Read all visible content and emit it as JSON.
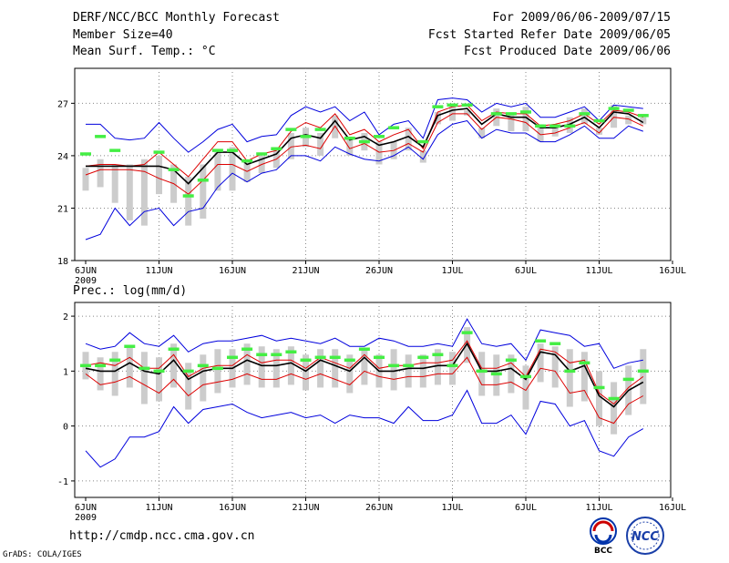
{
  "header": {
    "title": "DERF/NCC/BCC Monthly Forecast",
    "member_size": "Member Size=40",
    "variable": "Mean Surf. Temp.: °C",
    "period": "For 2009/06/06-2009/07/15",
    "started": "Fcst Started Refer Date 2009/06/05",
    "produced": "Fcst Produced Date 2009/06/06"
  },
  "footer": {
    "url": "http://cmdp.ncc.cma.gov.cn",
    "grads": "GrADS: COLA/IGES",
    "logo_bcc": "BCC",
    "logo_ncc": "NCC"
  },
  "colors": {
    "max_min": "#0000dd",
    "spread": "#dd0000",
    "mean": "#000000",
    "box": "#cccccc",
    "ref": "#44ee44",
    "grid": "#888888"
  },
  "chart_data": [
    {
      "type": "line",
      "title": "Mean Surf. Temp.: °C",
      "x_tick_labels": [
        "6JUN",
        "11JUN",
        "16JUN",
        "21JUN",
        "26JUN",
        "1JUL",
        "6JUL",
        "11JUL",
        "16JUL"
      ],
      "x_year_label": "2009",
      "x_tick_days": [
        0,
        5,
        10,
        15,
        20,
        25,
        30,
        35,
        40
      ],
      "xlim": [
        0,
        40
      ],
      "ylim": [
        18,
        29
      ],
      "y_ticks": [
        18,
        21,
        24,
        27
      ],
      "x": [
        0,
        1,
        2,
        3,
        4,
        5,
        6,
        7,
        8,
        9,
        10,
        11,
        12,
        13,
        14,
        15,
        16,
        17,
        18,
        19,
        20,
        21,
        22,
        23,
        24,
        25,
        26,
        27,
        28,
        29,
        30,
        31,
        32,
        33,
        34,
        35,
        36,
        37,
        38
      ],
      "series": [
        {
          "name": "max",
          "values": [
            25.8,
            25.8,
            25.0,
            24.9,
            25.0,
            25.9,
            25.0,
            24.2,
            24.8,
            25.5,
            25.8,
            24.8,
            25.1,
            25.2,
            26.3,
            26.8,
            26.5,
            26.8,
            26.0,
            26.5,
            25.2,
            25.8,
            26.0,
            25.0,
            27.2,
            27.3,
            27.2,
            26.5,
            27.0,
            26.8,
            27.0,
            26.2,
            26.2,
            26.5,
            26.8,
            26.0,
            26.9,
            26.8,
            26.7
          ]
        },
        {
          "name": "spread_upper",
          "values": [
            23.4,
            23.5,
            23.5,
            23.4,
            23.5,
            24.2,
            23.5,
            22.8,
            23.8,
            24.8,
            24.8,
            23.7,
            24.1,
            24.3,
            25.4,
            25.9,
            25.6,
            26.4,
            25.2,
            25.5,
            24.8,
            25.2,
            25.5,
            24.4,
            26.5,
            26.8,
            26.9,
            26.0,
            26.5,
            26.4,
            26.4,
            25.7,
            25.8,
            26.0,
            26.4,
            25.8,
            26.6,
            26.5,
            26.2
          ]
        },
        {
          "name": "mean",
          "values": [
            23.4,
            23.4,
            23.4,
            23.4,
            23.4,
            23.4,
            23.2,
            22.4,
            23.3,
            24.2,
            24.2,
            23.5,
            23.8,
            24.1,
            25.0,
            25.2,
            25.0,
            26.0,
            24.9,
            25.1,
            24.6,
            24.8,
            25.1,
            24.5,
            26.3,
            26.6,
            26.7,
            25.8,
            26.4,
            26.2,
            26.2,
            25.6,
            25.6,
            25.8,
            26.2,
            25.6,
            26.5,
            26.4,
            25.9
          ]
        },
        {
          "name": "spread_lower",
          "values": [
            22.9,
            23.2,
            23.2,
            23.2,
            23.1,
            22.7,
            22.4,
            21.8,
            22.6,
            23.5,
            23.5,
            23.1,
            23.5,
            23.8,
            24.5,
            24.6,
            24.4,
            25.7,
            24.4,
            24.7,
            24.2,
            24.3,
            24.7,
            24.2,
            25.9,
            26.4,
            26.4,
            25.5,
            26.2,
            26.1,
            25.9,
            25.2,
            25.3,
            25.6,
            25.9,
            25.3,
            26.2,
            26.1,
            25.7
          ]
        },
        {
          "name": "min",
          "values": [
            19.2,
            19.5,
            21.0,
            20.0,
            20.8,
            21.0,
            20.0,
            20.8,
            21.0,
            22.2,
            23.0,
            22.5,
            23.0,
            23.2,
            24.0,
            24.0,
            23.7,
            24.5,
            24.1,
            23.8,
            23.7,
            24.0,
            24.5,
            23.8,
            25.2,
            25.8,
            26.0,
            25.0,
            25.5,
            25.3,
            25.3,
            24.8,
            24.8,
            25.2,
            25.7,
            25.0,
            25.0,
            25.7,
            25.4
          ]
        },
        {
          "name": "box_top",
          "values": [
            23.3,
            23.8,
            23.5,
            23.5,
            23.8,
            24.0,
            23.5,
            22.8,
            23.5,
            24.2,
            24.5,
            23.6,
            24.0,
            24.3,
            25.3,
            25.6,
            25.3,
            26.3,
            25.0,
            25.3,
            24.8,
            24.8,
            25.6,
            24.3,
            26.5,
            26.8,
            26.6,
            25.6,
            26.7,
            26.4,
            26.8,
            25.8,
            25.7,
            26.2,
            26.7,
            25.6,
            26.9,
            26.3,
            26.2
          ]
        },
        {
          "name": "box_bottom",
          "values": [
            22.0,
            22.2,
            21.3,
            20.3,
            20.0,
            21.8,
            21.3,
            20.0,
            20.4,
            22.0,
            22.0,
            22.5,
            23.0,
            23.3,
            23.8,
            24.5,
            24.0,
            25.0,
            24.0,
            24.3,
            23.5,
            23.8,
            24.3,
            23.6,
            25.8,
            26.0,
            26.3,
            25.0,
            25.7,
            25.4,
            25.4,
            24.8,
            25.1,
            25.3,
            25.8,
            25.2,
            25.6,
            25.8,
            25.8
          ]
        },
        {
          "name": "reference",
          "values": [
            24.1,
            25.1,
            24.3,
            null,
            null,
            24.2,
            23.2,
            21.7,
            22.6,
            24.3,
            24.3,
            23.7,
            24.1,
            24.4,
            25.5,
            25.1,
            25.5,
            null,
            25.0,
            24.8,
            25.1,
            25.6,
            null,
            24.8,
            26.8,
            26.9,
            26.9,
            null,
            26.4,
            26.4,
            26.5,
            25.7,
            25.7,
            25.7,
            26.4,
            26.0,
            26.7,
            26.6,
            26.3
          ]
        }
      ]
    },
    {
      "type": "line",
      "title": "Prec.: log(mm/d)",
      "x_tick_labels": [
        "6JUN",
        "11JUN",
        "16JUN",
        "21JUN",
        "26JUN",
        "1JUL",
        "6JUL",
        "11JUL",
        "16JUL"
      ],
      "x_year_label": "2009",
      "x_tick_days": [
        0,
        5,
        10,
        15,
        20,
        25,
        30,
        35,
        40
      ],
      "xlim": [
        0,
        40
      ],
      "ylim": [
        -1.3,
        2.25
      ],
      "y_ticks": [
        -1,
        0,
        1,
        2
      ],
      "x": [
        0,
        1,
        2,
        3,
        4,
        5,
        6,
        7,
        8,
        9,
        10,
        11,
        12,
        13,
        14,
        15,
        16,
        17,
        18,
        19,
        20,
        21,
        22,
        23,
        24,
        25,
        26,
        27,
        28,
        29,
        30,
        31,
        32,
        33,
        34,
        35,
        36,
        37,
        38
      ],
      "series": [
        {
          "name": "max",
          "values": [
            1.5,
            1.4,
            1.45,
            1.7,
            1.5,
            1.45,
            1.65,
            1.35,
            1.5,
            1.55,
            1.55,
            1.6,
            1.65,
            1.55,
            1.6,
            1.55,
            1.5,
            1.6,
            1.45,
            1.45,
            1.6,
            1.55,
            1.45,
            1.45,
            1.5,
            1.45,
            1.95,
            1.5,
            1.45,
            1.5,
            1.2,
            1.75,
            1.7,
            1.65,
            1.45,
            1.5,
            1.05,
            1.15,
            1.2
          ]
        },
        {
          "name": "spread_upper",
          "values": [
            1.1,
            1.15,
            1.1,
            1.25,
            1.05,
            1.05,
            1.3,
            0.9,
            1.05,
            1.1,
            1.1,
            1.3,
            1.15,
            1.2,
            1.2,
            1.05,
            1.25,
            1.15,
            1.05,
            1.3,
            1.05,
            1.1,
            1.1,
            1.15,
            1.15,
            1.2,
            1.55,
            1.05,
            1.05,
            1.15,
            0.9,
            1.4,
            1.35,
            1.15,
            1.2,
            0.6,
            0.4,
            0.7,
            0.9
          ]
        },
        {
          "name": "mean",
          "values": [
            1.05,
            1.0,
            1.0,
            1.15,
            1.0,
            0.95,
            1.2,
            0.85,
            1.0,
            1.05,
            1.05,
            1.2,
            1.1,
            1.1,
            1.15,
            1.0,
            1.2,
            1.1,
            1.0,
            1.25,
            1.0,
            1.0,
            1.05,
            1.05,
            1.1,
            1.1,
            1.5,
            1.0,
            1.0,
            1.05,
            0.85,
            1.35,
            1.3,
            1.0,
            1.1,
            0.55,
            0.35,
            0.65,
            0.8
          ]
        },
        {
          "name": "spread_lower",
          "values": [
            0.95,
            0.75,
            0.8,
            0.9,
            0.75,
            0.6,
            0.85,
            0.55,
            0.75,
            0.8,
            0.85,
            0.95,
            0.85,
            0.85,
            0.95,
            0.85,
            0.95,
            0.85,
            0.75,
            1.0,
            0.9,
            0.85,
            0.9,
            0.9,
            0.95,
            0.95,
            1.25,
            0.75,
            0.75,
            0.8,
            0.65,
            1.05,
            1.0,
            0.6,
            0.65,
            0.15,
            0.05,
            0.4,
            0.55
          ]
        },
        {
          "name": "min",
          "values": [
            -0.45,
            -0.75,
            -0.6,
            -0.2,
            -0.2,
            -0.1,
            0.35,
            0.05,
            0.3,
            0.35,
            0.4,
            0.25,
            0.15,
            0.2,
            0.25,
            0.15,
            0.2,
            0.05,
            0.2,
            0.15,
            0.15,
            0.05,
            0.35,
            0.1,
            0.1,
            0.2,
            0.65,
            0.05,
            0.05,
            0.2,
            -0.15,
            0.45,
            0.4,
            0.0,
            0.1,
            -0.45,
            -0.55,
            -0.2,
            -0.05
          ]
        },
        {
          "name": "box_top",
          "values": [
            1.35,
            1.25,
            1.35,
            1.45,
            1.35,
            1.25,
            1.5,
            1.15,
            1.3,
            1.4,
            1.4,
            1.5,
            1.45,
            1.4,
            1.45,
            1.3,
            1.4,
            1.4,
            1.3,
            1.4,
            1.3,
            1.4,
            1.3,
            1.3,
            1.4,
            1.35,
            1.8,
            1.35,
            1.3,
            1.3,
            1.1,
            1.5,
            1.45,
            1.4,
            1.35,
            1.0,
            0.8,
            1.1,
            1.4
          ]
        },
        {
          "name": "box_bottom",
          "values": [
            0.85,
            0.65,
            0.55,
            0.7,
            0.4,
            0.45,
            0.7,
            0.3,
            0.45,
            0.6,
            0.7,
            0.75,
            0.7,
            0.7,
            0.75,
            0.65,
            0.7,
            0.7,
            0.6,
            0.75,
            0.7,
            0.65,
            0.7,
            0.7,
            0.75,
            0.75,
            1.15,
            0.55,
            0.55,
            0.6,
            0.3,
            0.8,
            0.7,
            0.35,
            0.45,
            0.0,
            -0.15,
            0.2,
            0.4
          ]
        },
        {
          "name": "reference",
          "values": [
            1.1,
            1.1,
            1.2,
            1.45,
            1.05,
            1.0,
            1.4,
            1.0,
            1.1,
            1.05,
            1.25,
            1.4,
            1.3,
            1.3,
            1.35,
            1.2,
            1.25,
            1.25,
            1.2,
            1.4,
            1.25,
            1.1,
            1.1,
            1.25,
            1.3,
            1.1,
            1.7,
            1.0,
            0.95,
            1.2,
            0.9,
            1.55,
            1.5,
            1.0,
            1.15,
            0.7,
            0.5,
            0.85,
            1.0
          ]
        }
      ]
    }
  ]
}
